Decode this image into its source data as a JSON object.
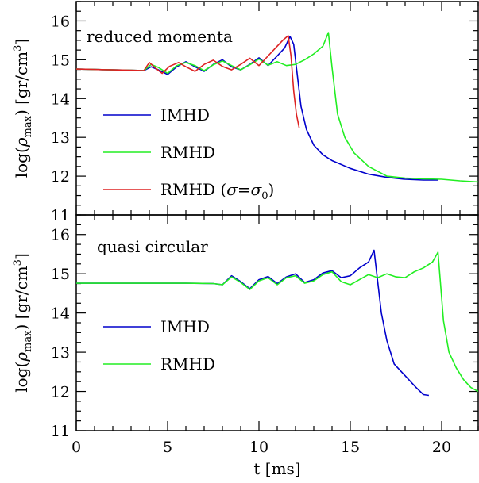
{
  "chart_data": [
    {
      "type": "line",
      "title": "reduced momenta",
      "xlabel": "t [ms]",
      "ylabel": "log(ρmax) [gr/cm3]",
      "ylabel_parts": {
        "pre": "log(",
        "rho": "ρ",
        "sub": "max",
        "post": ") [gr/cm",
        "sup": "3",
        "close": "]"
      },
      "xlim": [
        0,
        22
      ],
      "ylim": [
        11,
        16.5
      ],
      "xticks": [
        "0",
        "5",
        "10",
        "15",
        "20"
      ],
      "yticks": [
        "11",
        "12",
        "13",
        "14",
        "15",
        "16"
      ],
      "legend_position": "lower-left",
      "series": [
        {
          "name": "IMHD",
          "color": "#0000cc",
          "x": [
            0,
            1,
            2,
            3,
            3.7,
            4.1,
            4.5,
            5.0,
            5.5,
            6.0,
            6.5,
            7.0,
            7.5,
            8.0,
            8.5,
            9.0,
            9.5,
            10.0,
            10.5,
            11.0,
            11.4,
            11.7,
            11.9,
            12.1,
            12.3,
            12.6,
            13.0,
            13.5,
            14.0,
            15.0,
            16.0,
            17.0,
            18.0,
            19.0,
            19.8
          ],
          "y": [
            14.76,
            14.75,
            14.74,
            14.73,
            14.72,
            14.82,
            14.74,
            14.62,
            14.82,
            14.95,
            14.82,
            14.7,
            14.88,
            15.0,
            14.82,
            14.74,
            14.88,
            15.05,
            14.85,
            15.1,
            15.3,
            15.6,
            15.4,
            14.6,
            13.8,
            13.2,
            12.8,
            12.55,
            12.4,
            12.2,
            12.05,
            11.97,
            11.92,
            11.9,
            11.9
          ]
        },
        {
          "name": "RMHD",
          "color": "#22ee22",
          "x": [
            0,
            1,
            2,
            3,
            3.7,
            4.1,
            4.5,
            5.0,
            5.5,
            6.0,
            6.5,
            7.0,
            7.5,
            8.0,
            8.5,
            9.0,
            9.5,
            10.0,
            10.5,
            11.0,
            11.5,
            12.0,
            12.5,
            13.0,
            13.5,
            13.8,
            14.0,
            14.3,
            14.7,
            15.2,
            16.0,
            17.0,
            18.0,
            19.0,
            20.0,
            21.0,
            22.0
          ],
          "y": [
            14.76,
            14.75,
            14.74,
            14.73,
            14.72,
            14.88,
            14.8,
            14.65,
            14.85,
            14.93,
            14.85,
            14.72,
            14.87,
            14.97,
            14.85,
            14.74,
            14.87,
            15.02,
            14.86,
            14.95,
            14.85,
            14.88,
            15.0,
            15.15,
            15.35,
            15.7,
            14.8,
            13.6,
            13.0,
            12.6,
            12.25,
            12.0,
            11.95,
            11.93,
            11.92,
            11.88,
            11.85
          ]
        },
        {
          "name": "RMHD (σ=σ0)",
          "legend_parts": {
            "pre": "RMHD (",
            "sigma1": "σ",
            "eq": "=",
            "sigma2": "σ",
            "sub": "0",
            "close": ")"
          },
          "color": "#dd2222",
          "x": [
            0,
            1,
            2,
            3,
            3.7,
            4.0,
            4.3,
            4.7,
            5.1,
            5.6,
            6.0,
            6.5,
            7.0,
            7.5,
            8.0,
            8.5,
            9.0,
            9.5,
            10.0,
            10.5,
            11.0,
            11.3,
            11.6,
            11.75,
            11.9,
            12.05,
            12.2
          ],
          "y": [
            14.76,
            14.75,
            14.74,
            14.73,
            14.72,
            14.93,
            14.8,
            14.65,
            14.83,
            14.93,
            14.82,
            14.7,
            14.88,
            14.99,
            14.83,
            14.74,
            14.88,
            15.04,
            14.85,
            15.1,
            15.35,
            15.5,
            15.62,
            15.1,
            14.2,
            13.6,
            13.25
          ]
        }
      ]
    },
    {
      "type": "line",
      "title": "quasi circular",
      "xlabel": "t [ms]",
      "ylabel": "log(ρmax) [gr/cm3]",
      "ylabel_parts": {
        "pre": "log(",
        "rho": "ρ",
        "sub": "max",
        "post": ") [gr/cm",
        "sup": "3",
        "close": "]"
      },
      "xlim": [
        0,
        22
      ],
      "ylim": [
        11,
        16.5
      ],
      "xticks": [
        "0",
        "5",
        "10",
        "15",
        "20"
      ],
      "yticks": [
        "11",
        "12",
        "13",
        "14",
        "15",
        "16"
      ],
      "legend_position": "lower-left",
      "series": [
        {
          "name": "IMHD",
          "color": "#0000cc",
          "x": [
            0,
            2,
            4,
            6,
            7.5,
            8.0,
            8.5,
            9.0,
            9.5,
            10.0,
            10.5,
            11.0,
            11.5,
            12.0,
            12.5,
            13.0,
            13.5,
            14.0,
            14.5,
            15.0,
            15.5,
            16.0,
            16.3,
            16.5,
            16.7,
            17.0,
            17.4,
            17.8,
            18.2,
            18.6,
            19.0,
            19.3
          ],
          "y": [
            14.76,
            14.76,
            14.76,
            14.76,
            14.75,
            14.72,
            14.95,
            14.8,
            14.62,
            14.85,
            14.93,
            14.75,
            14.92,
            15.0,
            14.78,
            14.85,
            15.02,
            15.08,
            14.9,
            14.95,
            15.15,
            15.3,
            15.6,
            14.8,
            14.0,
            13.3,
            12.7,
            12.5,
            12.3,
            12.1,
            11.92,
            11.9
          ]
        },
        {
          "name": "RMHD",
          "color": "#22ee22",
          "x": [
            0,
            2,
            4,
            6,
            7.5,
            8.0,
            8.5,
            9.0,
            9.5,
            10.0,
            10.5,
            11.0,
            11.5,
            12.0,
            12.5,
            13.0,
            13.5,
            14.0,
            14.5,
            15.0,
            15.5,
            16.0,
            16.5,
            17.0,
            17.5,
            18.0,
            18.5,
            19.0,
            19.5,
            19.8,
            20.1,
            20.4,
            20.8,
            21.2,
            21.6,
            22.0
          ],
          "y": [
            14.76,
            14.76,
            14.76,
            14.76,
            14.75,
            14.72,
            14.92,
            14.78,
            14.6,
            14.82,
            14.9,
            14.72,
            14.9,
            14.95,
            14.76,
            14.82,
            14.98,
            15.05,
            14.8,
            14.72,
            14.85,
            14.98,
            14.9,
            15.0,
            14.92,
            14.9,
            15.05,
            15.15,
            15.3,
            15.55,
            13.8,
            13.0,
            12.6,
            12.3,
            12.1,
            12.0
          ]
        }
      ]
    }
  ]
}
